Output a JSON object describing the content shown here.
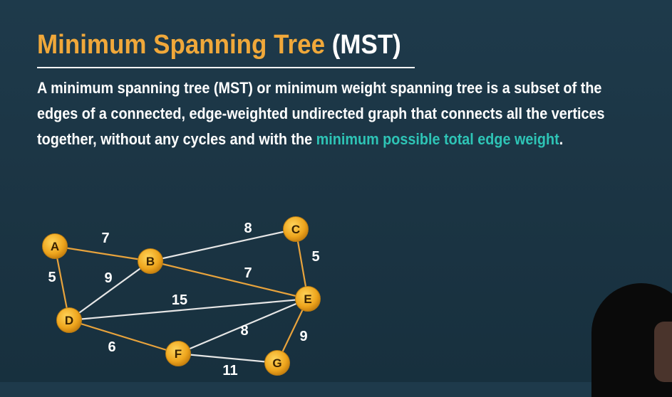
{
  "slide": {
    "title_main": "Minimum Spanning Tree",
    "title_abbr": "(MST)",
    "description": {
      "line1": "A minimum spanning tree (MST) or minimum weight spanning tree is a subset of the",
      "line2": "edges of a connected, edge-weighted undirected graph that connects all the vertices",
      "line3_before": "together, without any cycles and with the ",
      "line3_highlight": "minimum possible total edge weight",
      "line3_after": "."
    }
  },
  "colors": {
    "background": "#1b3443",
    "title_orange": "#f0a83a",
    "highlight_teal": "#2ec4b6",
    "mst_edge": "#e8a33c",
    "non_mst_edge": "#e6e6e6",
    "node_fill": "#e9a11c"
  },
  "graph": {
    "nodes": [
      {
        "id": "A"
      },
      {
        "id": "B"
      },
      {
        "id": "C"
      },
      {
        "id": "D"
      },
      {
        "id": "E"
      },
      {
        "id": "F"
      },
      {
        "id": "G"
      }
    ],
    "edges": [
      {
        "from": "A",
        "to": "B",
        "weight": "7",
        "in_mst": true
      },
      {
        "from": "A",
        "to": "D",
        "weight": "5",
        "in_mst": true
      },
      {
        "from": "B",
        "to": "C",
        "weight": "8",
        "in_mst": false
      },
      {
        "from": "B",
        "to": "D",
        "weight": "9",
        "in_mst": false
      },
      {
        "from": "B",
        "to": "E",
        "weight": "7",
        "in_mst": true
      },
      {
        "from": "C",
        "to": "E",
        "weight": "5",
        "in_mst": true
      },
      {
        "from": "D",
        "to": "E",
        "weight": "15",
        "in_mst": false
      },
      {
        "from": "D",
        "to": "F",
        "weight": "6",
        "in_mst": true
      },
      {
        "from": "E",
        "to": "F",
        "weight": "8",
        "in_mst": false
      },
      {
        "from": "E",
        "to": "G",
        "weight": "9",
        "in_mst": true
      },
      {
        "from": "F",
        "to": "G",
        "weight": "11",
        "in_mst": false
      }
    ]
  }
}
